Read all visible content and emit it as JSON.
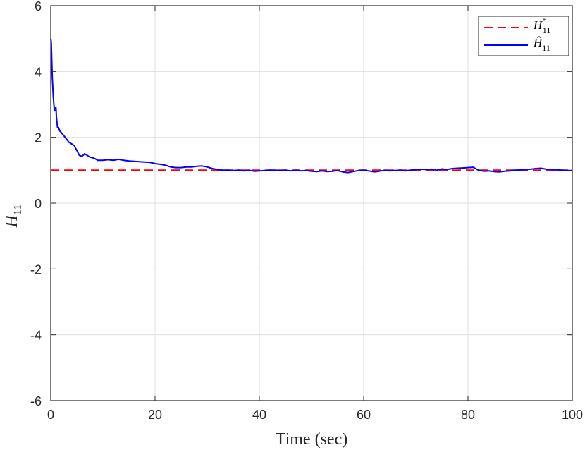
{
  "chart_data": {
    "type": "line",
    "title": "",
    "xlabel": "Time (sec)",
    "ylabel": "H",
    "ylabel_sub": "11",
    "xlim": [
      0,
      100
    ],
    "ylim": [
      -6,
      6
    ],
    "xticks": [
      0,
      20,
      40,
      60,
      80,
      100
    ],
    "yticks": [
      -6,
      -4,
      -2,
      0,
      2,
      4,
      6
    ],
    "xtick_labels": [
      "0",
      "20",
      "40",
      "60",
      "80",
      "100"
    ],
    "ytick_labels": [
      "-6",
      "-4",
      "-2",
      "0",
      "2",
      "4",
      "6"
    ],
    "grid": true,
    "legend_position": "top-right",
    "series": [
      {
        "name": "H*11",
        "legend_main": "H",
        "legend_sup": "*",
        "legend_sub": "11",
        "style": "dashed",
        "color": "#ff0000",
        "x": [
          0,
          100
        ],
        "y": [
          1,
          1
        ]
      },
      {
        "name": "Ĥ11",
        "legend_main": "Ĥ",
        "legend_sup": "",
        "legend_sub": "11",
        "style": "solid",
        "color": "#0000ff",
        "x": [
          0,
          0.1,
          0.3,
          0.5,
          0.7,
          0.9,
          1.0,
          1.1,
          1.3,
          1.5,
          1.7,
          2.0,
          2.5,
          3.0,
          3.5,
          4.0,
          4.5,
          5.0,
          5.5,
          6.0,
          6.5,
          7.0,
          7.5,
          8.0,
          8.5,
          9.0,
          10,
          11,
          12,
          13,
          14,
          15,
          16,
          17,
          18,
          19,
          20,
          21,
          22,
          23,
          24,
          25,
          26,
          27,
          28,
          29,
          30,
          31,
          32,
          33,
          34,
          35,
          36,
          37,
          38,
          39,
          40,
          41,
          42,
          43,
          44,
          45,
          46,
          47,
          48,
          49,
          50,
          51,
          52,
          53,
          54,
          55,
          56,
          57,
          58,
          59,
          60,
          61,
          62,
          63,
          64,
          65,
          66,
          67,
          68,
          69,
          70,
          71,
          72,
          73,
          74,
          75,
          76,
          77,
          78,
          79,
          80,
          81,
          82,
          83,
          84,
          85,
          86,
          87,
          88,
          89,
          90,
          91,
          92,
          93,
          94,
          95,
          96,
          97,
          98,
          99,
          100
        ],
        "y": [
          5.0,
          4.9,
          3.8,
          3.2,
          2.8,
          2.9,
          2.9,
          2.6,
          2.3,
          2.3,
          2.2,
          2.15,
          2.05,
          1.95,
          1.85,
          1.8,
          1.75,
          1.6,
          1.45,
          1.42,
          1.5,
          1.45,
          1.4,
          1.38,
          1.35,
          1.3,
          1.3,
          1.32,
          1.3,
          1.33,
          1.3,
          1.28,
          1.27,
          1.26,
          1.25,
          1.24,
          1.2,
          1.18,
          1.15,
          1.1,
          1.08,
          1.08,
          1.1,
          1.1,
          1.12,
          1.13,
          1.1,
          1.05,
          1.02,
          1.0,
          1.0,
          0.99,
          1.0,
          0.98,
          1.0,
          0.97,
          0.98,
          0.99,
          1.0,
          1.0,
          0.99,
          1.0,
          0.98,
          1.0,
          0.98,
          0.99,
          0.97,
          0.96,
          0.98,
          0.96,
          0.97,
          0.99,
          0.95,
          0.93,
          0.96,
          0.99,
          1.0,
          0.98,
          0.95,
          0.97,
          1.0,
          0.98,
          0.99,
          1.0,
          0.98,
          1.0,
          1.02,
          1.03,
          1.02,
          1.03,
          1.0,
          1.04,
          1.02,
          1.05,
          1.06,
          1.07,
          1.08,
          1.09,
          1.0,
          0.97,
          0.98,
          0.96,
          0.95,
          0.97,
          0.98,
          1.0,
          1.01,
          1.02,
          1.03,
          1.05,
          1.06,
          1.03,
          1.02,
          1.01,
          1.0,
          0.99,
          0.99
        ]
      }
    ]
  }
}
